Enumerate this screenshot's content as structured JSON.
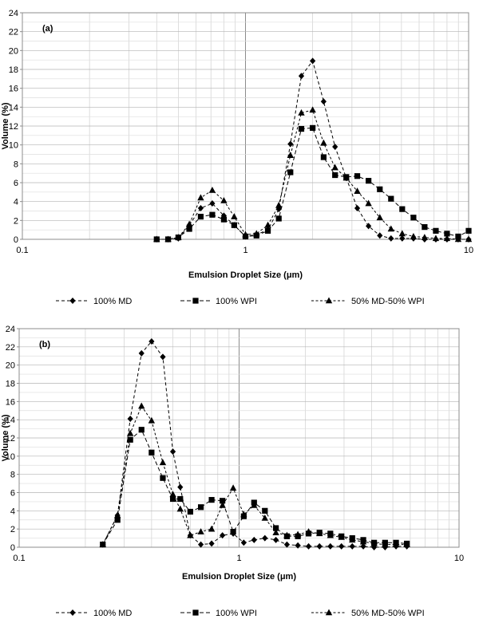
{
  "chart_data": [
    {
      "type": "scatter",
      "panel_label": "(a)",
      "xlabel": "Emulsion Droplet Size (μm)",
      "ylabel": "Volume (%)",
      "xscale": "log",
      "xlim": [
        0.1,
        10
      ],
      "ylim": [
        0,
        24
      ],
      "yticks": [
        0,
        2,
        4,
        6,
        8,
        10,
        12,
        14,
        16,
        18,
        20,
        22,
        24
      ],
      "xtick_labels": [
        "0.1",
        "1",
        "10"
      ],
      "grid": true,
      "legend_position": "bottom",
      "series": [
        {
          "name": "100% MD",
          "marker": "diamond",
          "line": "dashed",
          "points": [
            [
              0.4,
              0
            ],
            [
              0.45,
              0
            ],
            [
              0.5,
              0.1
            ],
            [
              0.56,
              1.5
            ],
            [
              0.63,
              3.3
            ],
            [
              0.71,
              3.8
            ],
            [
              0.8,
              2.5
            ],
            [
              0.89,
              1.5
            ],
            [
              1,
              0.3
            ],
            [
              1.12,
              0.5
            ],
            [
              1.26,
              1
            ],
            [
              1.41,
              3.2
            ],
            [
              1.59,
              10.1
            ],
            [
              1.78,
              17.3
            ],
            [
              2,
              18.9
            ],
            [
              2.24,
              14.6
            ],
            [
              2.52,
              9.8
            ],
            [
              2.83,
              6.5
            ],
            [
              3.17,
              3.3
            ],
            [
              3.56,
              1.4
            ],
            [
              4,
              0.4
            ],
            [
              4.49,
              0.1
            ],
            [
              5.04,
              0.1
            ],
            [
              5.66,
              0.1
            ],
            [
              6.35,
              0
            ],
            [
              7.13,
              0
            ],
            [
              8,
              0
            ],
            [
              8.98,
              0
            ],
            [
              10,
              0
            ]
          ]
        },
        {
          "name": "100% WPI",
          "marker": "square",
          "line": "dashed",
          "points": [
            [
              0.4,
              0
            ],
            [
              0.45,
              0
            ],
            [
              0.5,
              0.2
            ],
            [
              0.56,
              1.1
            ],
            [
              0.63,
              2.4
            ],
            [
              0.71,
              2.6
            ],
            [
              0.8,
              2.1
            ],
            [
              0.89,
              1.5
            ],
            [
              1,
              0.3
            ],
            [
              1.12,
              0.4
            ],
            [
              1.26,
              0.9
            ],
            [
              1.41,
              2.2
            ],
            [
              1.59,
              7.1
            ],
            [
              1.78,
              11.7
            ],
            [
              2,
              11.8
            ],
            [
              2.24,
              8.7
            ],
            [
              2.52,
              6.8
            ],
            [
              2.83,
              6.6
            ],
            [
              3.17,
              6.7
            ],
            [
              3.56,
              6.2
            ],
            [
              4,
              5.3
            ],
            [
              4.49,
              4.3
            ],
            [
              5.04,
              3.2
            ],
            [
              5.66,
              2.3
            ],
            [
              6.35,
              1.3
            ],
            [
              7.13,
              0.9
            ],
            [
              8,
              0.6
            ],
            [
              8.98,
              0.3
            ],
            [
              10,
              0.9
            ]
          ]
        },
        {
          "name": "50% MD-50% WPI",
          "marker": "triangle",
          "line": "dashed",
          "points": [
            [
              0.4,
              0
            ],
            [
              0.45,
              0
            ],
            [
              0.5,
              0.2
            ],
            [
              0.56,
              1.6
            ],
            [
              0.63,
              4.4
            ],
            [
              0.71,
              5.2
            ],
            [
              0.8,
              4.1
            ],
            [
              0.89,
              2.4
            ],
            [
              1,
              0.5
            ],
            [
              1.12,
              0.6
            ],
            [
              1.26,
              1.5
            ],
            [
              1.41,
              3.6
            ],
            [
              1.59,
              8.9
            ],
            [
              1.78,
              13.4
            ],
            [
              2,
              13.7
            ],
            [
              2.24,
              10.2
            ],
            [
              2.52,
              7.6
            ],
            [
              2.83,
              6.5
            ],
            [
              3.17,
              5.1
            ],
            [
              3.56,
              3.8
            ],
            [
              4,
              2.3
            ],
            [
              4.49,
              1.1
            ],
            [
              5.04,
              0.6
            ],
            [
              5.66,
              0.3
            ],
            [
              6.35,
              0.2
            ],
            [
              7.13,
              0.1
            ],
            [
              8,
              0.1
            ],
            [
              8.98,
              0
            ],
            [
              10,
              0
            ]
          ]
        }
      ]
    },
    {
      "type": "scatter",
      "panel_label": "(b)",
      "xlabel": "Emulsion Droplet Size (μm)",
      "ylabel": "Volume (%)",
      "xscale": "log",
      "xlim": [
        0.1,
        10
      ],
      "ylim": [
        0,
        24
      ],
      "yticks": [
        0,
        2,
        4,
        6,
        8,
        10,
        12,
        14,
        16,
        18,
        20,
        22,
        24
      ],
      "xtick_labels": [
        "0.1",
        "1",
        "10"
      ],
      "grid": true,
      "legend_position": "bottom",
      "series": [
        {
          "name": "100% MD",
          "marker": "diamond",
          "line": "dashed",
          "points": [
            [
              0.24,
              0.3
            ],
            [
              0.28,
              3.5
            ],
            [
              0.32,
              14.1
            ],
            [
              0.36,
              21.3
            ],
            [
              0.4,
              22.6
            ],
            [
              0.45,
              20.9
            ],
            [
              0.5,
              10.5
            ],
            [
              0.54,
              6.6
            ],
            [
              0.6,
              1.3
            ],
            [
              0.67,
              0.3
            ],
            [
              0.75,
              0.4
            ],
            [
              0.84,
              1.3
            ],
            [
              0.94,
              1.5
            ],
            [
              1.05,
              0.5
            ],
            [
              1.17,
              0.8
            ],
            [
              1.31,
              1
            ],
            [
              1.47,
              0.8
            ],
            [
              1.65,
              0.3
            ],
            [
              1.85,
              0.2
            ],
            [
              2.07,
              0.1
            ],
            [
              2.32,
              0.1
            ],
            [
              2.6,
              0.1
            ],
            [
              2.92,
              0.1
            ],
            [
              3.27,
              0.1
            ],
            [
              3.67,
              0.1
            ],
            [
              4.11,
              0
            ],
            [
              4.61,
              0
            ],
            [
              5.17,
              0.1
            ],
            [
              5.79,
              0.1
            ]
          ]
        },
        {
          "name": "100% WPI",
          "marker": "square",
          "line": "dashed",
          "points": [
            [
              0.24,
              0.3
            ],
            [
              0.28,
              3
            ],
            [
              0.32,
              11.8
            ],
            [
              0.36,
              12.9
            ],
            [
              0.4,
              10.4
            ],
            [
              0.45,
              7.6
            ],
            [
              0.5,
              5.3
            ],
            [
              0.54,
              5.3
            ],
            [
              0.6,
              3.9
            ],
            [
              0.67,
              4.4
            ],
            [
              0.75,
              5.2
            ],
            [
              0.84,
              5.1
            ],
            [
              0.94,
              1.7
            ],
            [
              1.05,
              3.4
            ],
            [
              1.17,
              4.9
            ],
            [
              1.31,
              4
            ],
            [
              1.47,
              2.1
            ],
            [
              1.65,
              1.2
            ],
            [
              1.85,
              1.2
            ],
            [
              2.07,
              1.5
            ],
            [
              2.32,
              1.6
            ],
            [
              2.6,
              1.5
            ],
            [
              2.92,
              1.2
            ],
            [
              3.27,
              1
            ],
            [
              3.67,
              0.8
            ],
            [
              4.11,
              0.5
            ],
            [
              4.61,
              0.5
            ],
            [
              5.17,
              0.5
            ],
            [
              5.79,
              0.4
            ]
          ]
        },
        {
          "name": "50% MD-50% WPI",
          "marker": "triangle",
          "line": "dashed",
          "points": [
            [
              0.24,
              0.3
            ],
            [
              0.28,
              3.5
            ],
            [
              0.32,
              12.5
            ],
            [
              0.36,
              15.5
            ],
            [
              0.4,
              13.9
            ],
            [
              0.45,
              9.3
            ],
            [
              0.5,
              5.8
            ],
            [
              0.54,
              4.2
            ],
            [
              0.6,
              1.3
            ],
            [
              0.67,
              1.7
            ],
            [
              0.75,
              2
            ],
            [
              0.84,
              4.6
            ],
            [
              0.94,
              6.5
            ],
            [
              1.05,
              3.6
            ],
            [
              1.17,
              4.6
            ],
            [
              1.31,
              3.2
            ],
            [
              1.47,
              1.6
            ],
            [
              1.65,
              1.3
            ],
            [
              1.85,
              1.4
            ],
            [
              2.07,
              1.7
            ],
            [
              2.32,
              1.5
            ],
            [
              2.6,
              1.3
            ],
            [
              2.92,
              1.1
            ],
            [
              3.27,
              0.8
            ],
            [
              3.67,
              0.6
            ],
            [
              4.11,
              0.4
            ],
            [
              4.61,
              0.3
            ],
            [
              5.17,
              0.3
            ],
            [
              5.79,
              0.3
            ]
          ]
        }
      ]
    }
  ]
}
